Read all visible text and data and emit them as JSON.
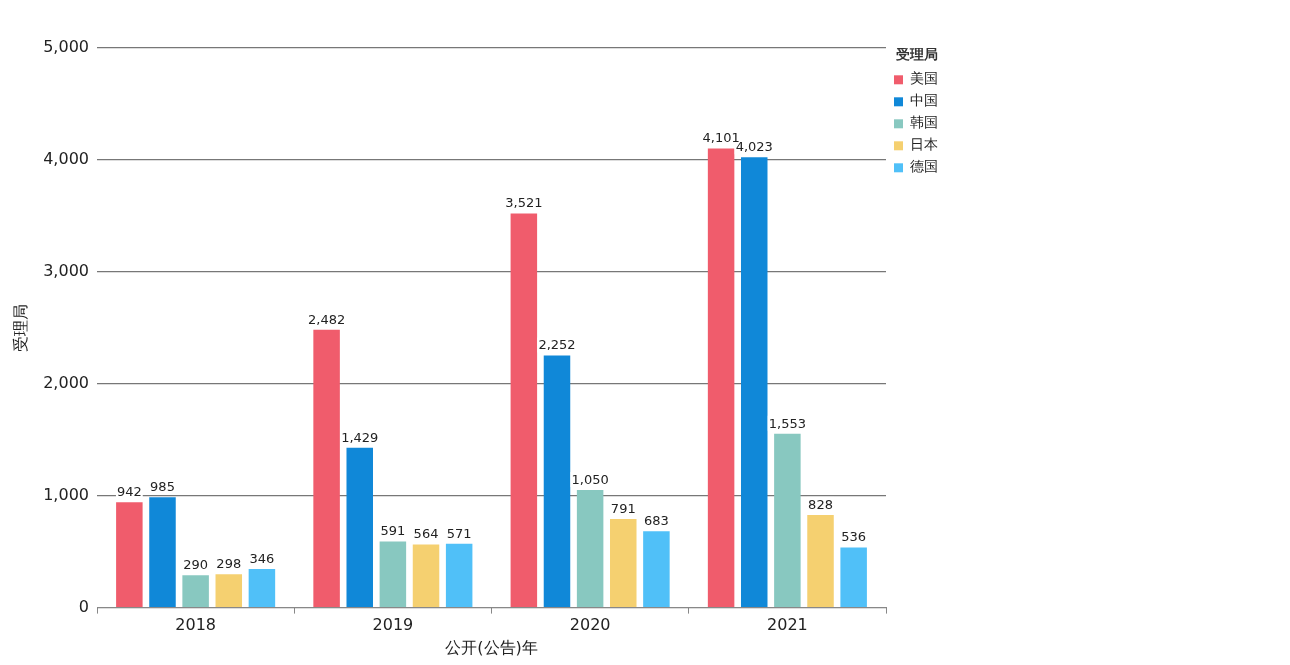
{
  "chart_data": {
    "type": "bar",
    "xlabel": "公开(公告)年",
    "ylabel": "受理局",
    "legend_title": "受理局",
    "categories": [
      "2018",
      "2019",
      "2020",
      "2021"
    ],
    "series": [
      {
        "name": "美国",
        "color": "#f05c6c",
        "values": [
          942,
          2482,
          3521,
          4101
        ],
        "value_labels": [
          "942",
          "2,482",
          "3,521",
          "4,101"
        ]
      },
      {
        "name": "中国",
        "color": "#1088d8",
        "values": [
          985,
          1429,
          2252,
          4023
        ],
        "value_labels": [
          "985",
          "1,429",
          "2,252",
          "4,023"
        ]
      },
      {
        "name": "韩国",
        "color": "#88c8c0",
        "values": [
          290,
          591,
          1050,
          1553
        ],
        "value_labels": [
          "290",
          "591",
          "1,050",
          "1,553"
        ]
      },
      {
        "name": "日本",
        "color": "#f5d070",
        "values": [
          298,
          564,
          791,
          828
        ],
        "value_labels": [
          "298",
          "564",
          "791",
          "828"
        ]
      },
      {
        "name": "德国",
        "color": "#50c0f8",
        "values": [
          346,
          571,
          683,
          536
        ],
        "value_labels": [
          "346",
          "571",
          "683",
          "536"
        ]
      }
    ],
    "ylim": [
      0,
      5000
    ],
    "yticks": [
      0,
      {
        "value": 1000,
        "label": "1,000"
      },
      {
        "value": 2000,
        "label": "2,000"
      },
      {
        "value": 3000,
        "label": "3,000"
      },
      {
        "value": 4000,
        "label": "4,000"
      },
      {
        "value": 5000,
        "label": "5,000"
      }
    ],
    "grid": "y",
    "legend": "top right"
  }
}
